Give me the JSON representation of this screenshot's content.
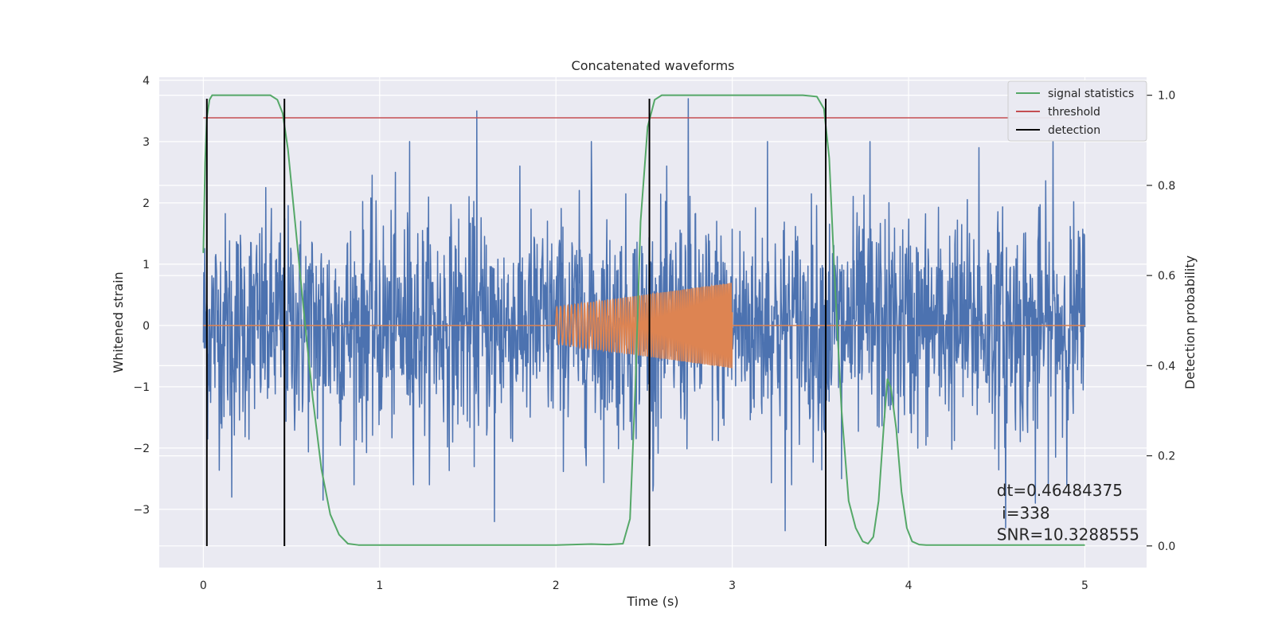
{
  "chart_data": {
    "type": "line",
    "title": "Concatenated waveforms",
    "xlabel": "Time (s)",
    "ylabel": "Whitened strain",
    "y2label": "Detection probability",
    "xlim": [
      -0.25,
      5.35
    ],
    "ylim": [
      -3.95,
      4.05
    ],
    "y2lim": [
      -0.048,
      1.04
    ],
    "x_ticks": [
      0,
      1,
      2,
      3,
      4,
      5
    ],
    "y_ticks": [
      -3,
      -2,
      -1,
      0,
      1,
      2,
      3,
      4
    ],
    "y2_ticks": [
      0.0,
      0.2,
      0.4,
      0.6,
      0.8,
      1.0
    ],
    "y2_tick_labels": [
      "0.0",
      "0.2",
      "0.4",
      "0.6",
      "0.8",
      "1.0"
    ],
    "grid": true,
    "legend": "top-right",
    "legend_entries": [
      {
        "label": "signal statistics",
        "color": "#55a868"
      },
      {
        "label": "threshold",
        "color": "#c44e52"
      },
      {
        "label": "detection",
        "color": "#000000"
      }
    ],
    "series": [
      {
        "role": "noise",
        "axis": "left",
        "color": "#4c72b0",
        "x_range": [
          0,
          5
        ],
        "sample_count": 2048,
        "amplitude_rms": 0.9,
        "peak_positive": [
          [
            1.17,
            3.0
          ],
          [
            1.55,
            3.5
          ],
          [
            2.2,
            3.0
          ],
          [
            2.75,
            3.7
          ],
          [
            3.2,
            3.0
          ],
          [
            3.78,
            3.0
          ],
          [
            4.4,
            2.9
          ],
          [
            4.82,
            3.0
          ]
        ],
        "peak_negative": [
          [
            0.16,
            -2.8
          ],
          [
            0.68,
            -2.85
          ],
          [
            1.65,
            -3.2
          ],
          [
            2.55,
            -2.7
          ],
          [
            3.3,
            -3.35
          ],
          [
            3.62,
            -2.5
          ],
          [
            4.55,
            -3.3
          ],
          [
            4.72,
            -2.9
          ]
        ]
      },
      {
        "role": "injected waveform",
        "axis": "left",
        "color": "#dd8452",
        "baseline": 0,
        "x_range": [
          0,
          5
        ],
        "chirp_start": 2.0,
        "chirp_end": 3.0,
        "chirp_amplitude_start": 0.3,
        "chirp_amplitude_end": 0.7
      },
      {
        "name": "signal statistics",
        "axis": "right",
        "color": "#55a868",
        "x": [
          0.0,
          0.01,
          0.02,
          0.035,
          0.05,
          0.08,
          0.12,
          0.2,
          0.3,
          0.38,
          0.42,
          0.45,
          0.48,
          0.52,
          0.57,
          0.62,
          0.67,
          0.72,
          0.77,
          0.82,
          0.88,
          1.0,
          1.5,
          2.0,
          2.2,
          2.3,
          2.38,
          2.42,
          2.45,
          2.48,
          2.52,
          2.56,
          2.6,
          2.65,
          2.7,
          2.8,
          3.0,
          3.2,
          3.4,
          3.48,
          3.52,
          3.55,
          3.58,
          3.62,
          3.66,
          3.7,
          3.74,
          3.77,
          3.8,
          3.83,
          3.86,
          3.88,
          3.9,
          3.93,
          3.96,
          3.99,
          4.02,
          4.06,
          4.1,
          4.2,
          4.5,
          5.0
        ],
        "y": [
          0.65,
          0.85,
          0.95,
          0.99,
          1.0,
          1.0,
          1.0,
          1.0,
          1.0,
          1.0,
          0.99,
          0.96,
          0.88,
          0.72,
          0.52,
          0.33,
          0.17,
          0.07,
          0.025,
          0.005,
          0.002,
          0.002,
          0.002,
          0.002,
          0.004,
          0.003,
          0.005,
          0.06,
          0.35,
          0.72,
          0.93,
          0.99,
          1.0,
          1.0,
          1.0,
          1.0,
          1.0,
          1.0,
          1.0,
          0.997,
          0.97,
          0.86,
          0.6,
          0.3,
          0.1,
          0.04,
          0.01,
          0.005,
          0.02,
          0.1,
          0.27,
          0.37,
          0.35,
          0.26,
          0.12,
          0.04,
          0.01,
          0.003,
          0.002,
          0.002,
          0.002,
          0.002
        ]
      },
      {
        "name": "threshold",
        "axis": "right",
        "color": "#c44e52",
        "x": [
          0.0,
          5.0
        ],
        "y": [
          0.95,
          0.95
        ]
      },
      {
        "name": "detection",
        "axis": "left",
        "color": "#000000",
        "type": "vertical_lines",
        "x": [
          0.02,
          0.46,
          2.53,
          3.53
        ],
        "y_from": -3.6,
        "y_to": 3.7
      }
    ],
    "annotations": [
      {
        "text": "dt=0.46484375",
        "x": 4.5,
        "y": -2.78
      },
      {
        "text": " i=338",
        "x": 4.5,
        "y": -3.15
      },
      {
        "text": "SNR=10.3288555",
        "x": 4.5,
        "y": -3.5
      }
    ]
  }
}
